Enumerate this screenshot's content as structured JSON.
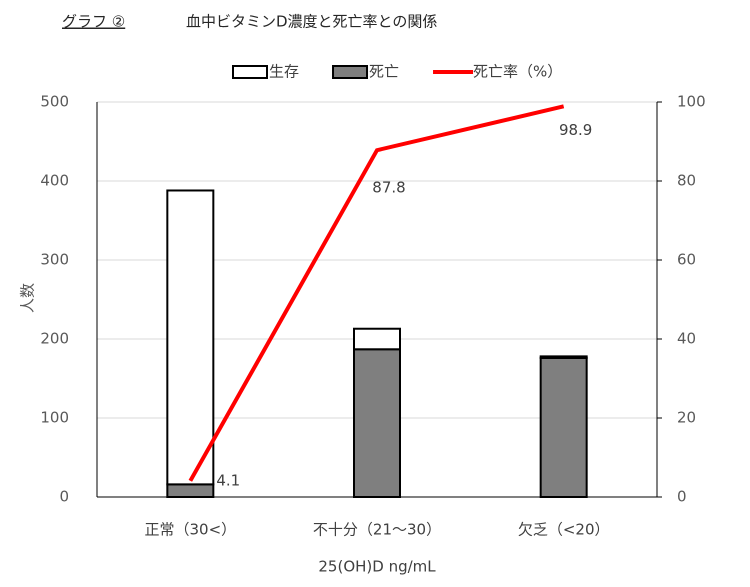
{
  "chart_data": {
    "type": "bar",
    "title": "グラフ ②",
    "subtitle": "血中ビタミンD濃度と死亡率との関係",
    "x_label": "25(OH)D ng/mL",
    "y_label": "人数",
    "categories": [
      "正常（30<）",
      "不十分（21～30）",
      "欠乏（<20）"
    ],
    "series": [
      {
        "name": "生存",
        "type": "bar",
        "color": "#ffffff",
        "values": [
          372,
          26,
          2
        ]
      },
      {
        "name": "死亡",
        "type": "bar",
        "color": "#7f7f7f",
        "values": [
          16,
          187,
          176
        ]
      },
      {
        "name": "死亡率（%）",
        "type": "line",
        "axis": "y2",
        "color": "#ff0000",
        "values": [
          4.1,
          87.8,
          98.9
        ]
      }
    ],
    "ylim": [
      0,
      500
    ],
    "yticks": [
      0,
      100,
      200,
      300,
      400,
      500
    ],
    "y2lim": [
      0,
      100
    ],
    "y2ticks": [
      0,
      20,
      40,
      60,
      80,
      100
    ],
    "grid": true,
    "legend": "top"
  }
}
